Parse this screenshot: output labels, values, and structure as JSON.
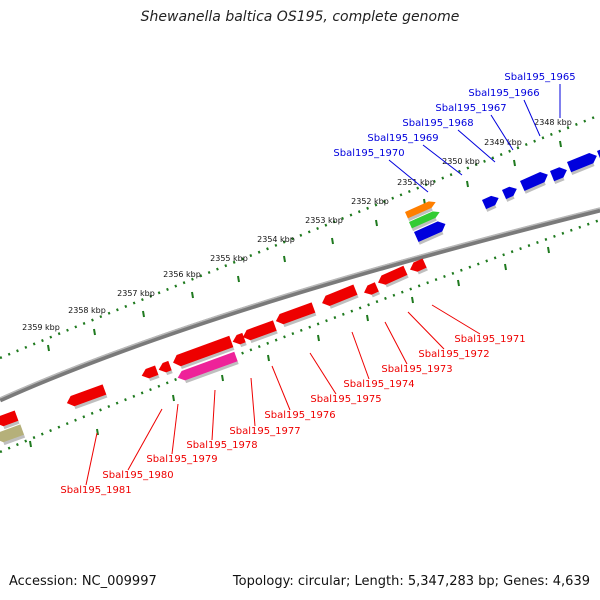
{
  "title": "Shewanella baltica OS195, complete genome",
  "footer": {
    "accession": "Accession: NC_009997",
    "topology": "Topology: circular; Length: 5,347,283 bp; Genes: 4,639"
  },
  "colors": {
    "backbone": "#7a7a7a",
    "ticks": "#1f7a1f",
    "forward": "#0000dd",
    "reverse": "#ee0000",
    "rna": "#ff7f00",
    "misc": "#33cc33",
    "pink": "#ee2299",
    "khaki": "#b5b07a"
  },
  "scale_labels": [
    "2348 kbp",
    "2349 kbp",
    "2350 kbp",
    "2351 kbp",
    "2352 kbp",
    "2353 kbp",
    "2354 kbp",
    "2355 kbp",
    "2356 kbp",
    "2357 kbp",
    "2358 kbp",
    "2359 kbp"
  ],
  "forward_genes": [
    "Sbal195_1965",
    "Sbal195_1966",
    "Sbal195_1967",
    "Sbal195_1968",
    "Sbal195_1969",
    "Sbal195_1970"
  ],
  "reverse_genes": [
    "Sbal195_1971",
    "Sbal195_1972",
    "Sbal195_1973",
    "Sbal195_1974",
    "Sbal195_1975",
    "Sbal195_1976",
    "Sbal195_1977",
    "Sbal195_1978",
    "Sbal195_1979",
    "Sbal195_1980",
    "Sbal195_1981"
  ]
}
